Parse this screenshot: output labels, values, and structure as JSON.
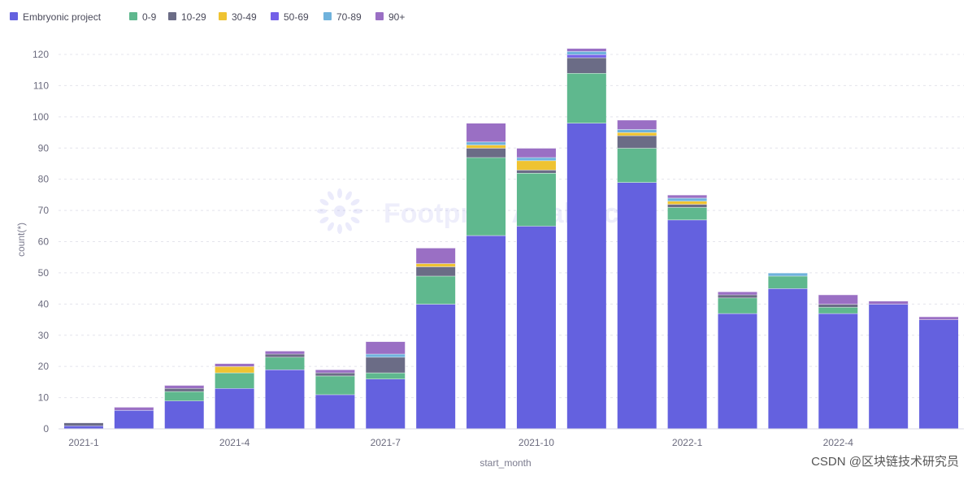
{
  "watermark": "Footprint Analytics",
  "credit": "CSDN @区块链技术研究员",
  "colors": {
    "Embryonic project": "#6461df",
    "0-9": "#5fb88e",
    "10-29": "#6b6c86",
    "30-49": "#efc332",
    "50-69": "#7360e8",
    "70-89": "#6fb2dc",
    "90+": "#9a6fc4"
  },
  "chart_data": {
    "type": "bar",
    "stacked": true,
    "xlabel": "start_month",
    "ylabel": "count(*)",
    "ylim": [
      0,
      125
    ],
    "yticks": [
      0,
      10,
      20,
      30,
      40,
      50,
      60,
      70,
      80,
      90,
      100,
      110,
      120
    ],
    "grid": true,
    "legend_position": "top-left",
    "categories": [
      "2021-1",
      "2021-2",
      "2021-3",
      "2021-4",
      "2021-5",
      "2021-6",
      "2021-7",
      "2021-8",
      "2021-9",
      "2021-10",
      "2021-11",
      "2021-12",
      "2022-1",
      "2022-2",
      "2022-3",
      "2022-4",
      "2022-5",
      "2022-6"
    ],
    "xtick_labels": [
      "2021-1",
      "",
      "",
      "2021-4",
      "",
      "",
      "2021-7",
      "",
      "",
      "2021-10",
      "",
      "",
      "2022-1",
      "",
      "",
      "2022-4",
      "",
      ""
    ],
    "series": [
      {
        "name": "Embryonic project",
        "values": [
          1,
          6,
          9,
          13,
          19,
          11,
          16,
          40,
          62,
          65,
          98,
          79,
          67,
          37,
          45,
          37,
          40,
          35
        ]
      },
      {
        "name": "0-9",
        "values": [
          0,
          0,
          3,
          5,
          4,
          6,
          2,
          9,
          25,
          17,
          16,
          11,
          4,
          5,
          4,
          2,
          0,
          0
        ]
      },
      {
        "name": "10-29",
        "values": [
          1,
          0,
          1,
          0,
          1,
          1,
          5,
          3,
          3,
          1,
          5,
          4,
          1,
          1,
          0,
          1,
          0,
          0
        ]
      },
      {
        "name": "30-49",
        "values": [
          0,
          0,
          0,
          2,
          0,
          0,
          0,
          1,
          1,
          3,
          0,
          1,
          1,
          0,
          0,
          0,
          0,
          0
        ]
      },
      {
        "name": "50-69",
        "values": [
          0,
          0,
          0,
          0,
          0,
          0,
          0,
          0,
          0,
          0,
          1,
          0,
          0,
          0,
          0,
          0,
          0,
          0
        ]
      },
      {
        "name": "70-89",
        "values": [
          0,
          0,
          0,
          0,
          0,
          0,
          1,
          0,
          1,
          1,
          1,
          1,
          1,
          0,
          1,
          0,
          0,
          0
        ]
      },
      {
        "name": "90+",
        "values": [
          0,
          1,
          1,
          1,
          1,
          1,
          4,
          5,
          6,
          3,
          1,
          3,
          1,
          1,
          0,
          3,
          1,
          1
        ]
      }
    ]
  }
}
